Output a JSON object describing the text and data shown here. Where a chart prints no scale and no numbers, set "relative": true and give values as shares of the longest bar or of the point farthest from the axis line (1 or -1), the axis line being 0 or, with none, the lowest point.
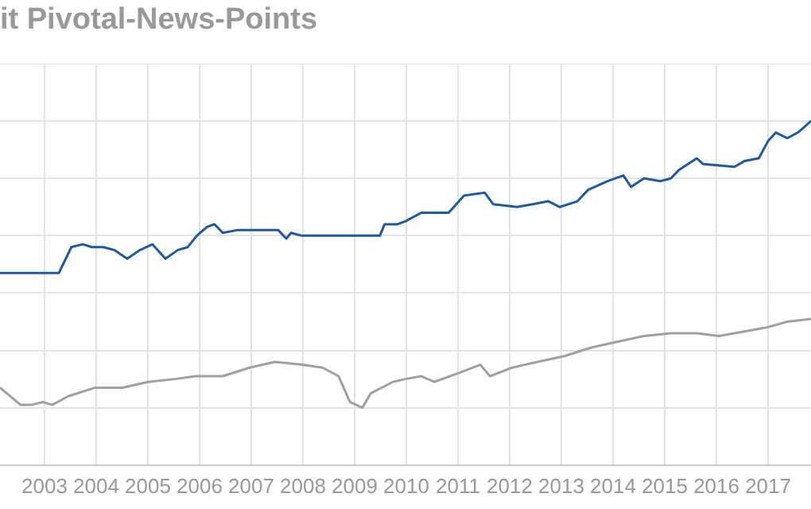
{
  "chart_data": {
    "type": "line",
    "title": "it Pivotal-News-Points",
    "relative": true,
    "grid": true,
    "legend": false,
    "marker": "none",
    "line_style": "solid",
    "xlim": [
      2002.14,
      2017.83
    ],
    "xticks": [
      2003,
      2004,
      2005,
      2006,
      2007,
      2008,
      2009,
      2010,
      2011,
      2012,
      2013,
      2014,
      2015,
      2016,
      2017
    ],
    "series": [
      {
        "color": "#1f5a9e",
        "x": [
          2002.14,
          2003.28,
          2003.52,
          2003.74,
          2003.92,
          2004.14,
          2004.35,
          2004.6,
          2004.85,
          2005.09,
          2005.34,
          2005.58,
          2005.77,
          2005.95,
          2006.14,
          2006.29,
          2006.45,
          2006.75,
          2007.22,
          2007.52,
          2007.68,
          2007.77,
          2007.98,
          2008.29,
          2009.49,
          2009.58,
          2009.83,
          2009.98,
          2010.29,
          2010.82,
          2011.12,
          2011.52,
          2011.68,
          2012.14,
          2012.45,
          2012.75,
          2012.97,
          2013.31,
          2013.52,
          2013.89,
          2014.2,
          2014.35,
          2014.6,
          2014.91,
          2015.12,
          2015.28,
          2015.62,
          2015.74,
          2016.35,
          2016.54,
          2016.82,
          2017.0,
          2017.15,
          2017.37,
          2017.58,
          2017.83
        ],
        "values": [
          0.47,
          0.47,
          0.56,
          0.57,
          0.56,
          0.56,
          0.55,
          0.52,
          0.55,
          0.57,
          0.52,
          0.55,
          0.56,
          0.6,
          0.63,
          0.64,
          0.61,
          0.62,
          0.62,
          0.62,
          0.59,
          0.61,
          0.6,
          0.6,
          0.6,
          0.64,
          0.64,
          0.65,
          0.68,
          0.68,
          0.74,
          0.75,
          0.71,
          0.7,
          0.71,
          0.72,
          0.7,
          0.72,
          0.76,
          0.79,
          0.81,
          0.77,
          0.8,
          0.79,
          0.8,
          0.83,
          0.87,
          0.85,
          0.84,
          0.86,
          0.87,
          0.93,
          0.96,
          0.94,
          0.96,
          1
        ]
      },
      {
        "color": "#a0a0a0",
        "x": [
          2002.14,
          2002.54,
          2002.75,
          2002.97,
          2003.15,
          2003.46,
          2003.98,
          2004.51,
          2005.0,
          2005.52,
          2005.92,
          2006.45,
          2006.97,
          2007.46,
          2007.98,
          2008.38,
          2008.69,
          2008.91,
          2009.15,
          2009.31,
          2009.74,
          2009.98,
          2010.29,
          2010.54,
          2011.0,
          2011.43,
          2011.62,
          2012.05,
          2012.54,
          2013.06,
          2013.58,
          2014.08,
          2014.6,
          2015.12,
          2015.62,
          2016.05,
          2016.35,
          2016.97,
          2017.37,
          2017.83
        ],
        "values": [
          0.07,
          0.01,
          0.01,
          0.02,
          0.01,
          0.04,
          0.07,
          0.07,
          0.09,
          0.1,
          0.11,
          0.11,
          0.14,
          0.16,
          0.15,
          0.14,
          0.11,
          0.02,
          0,
          0.05,
          0.09,
          0.1,
          0.11,
          0.09,
          0.12,
          0.15,
          0.11,
          0.14,
          0.16,
          0.18,
          0.21,
          0.23,
          0.25,
          0.26,
          0.26,
          0.25,
          0.26,
          0.28,
          0.3,
          0.31
        ]
      }
    ]
  }
}
